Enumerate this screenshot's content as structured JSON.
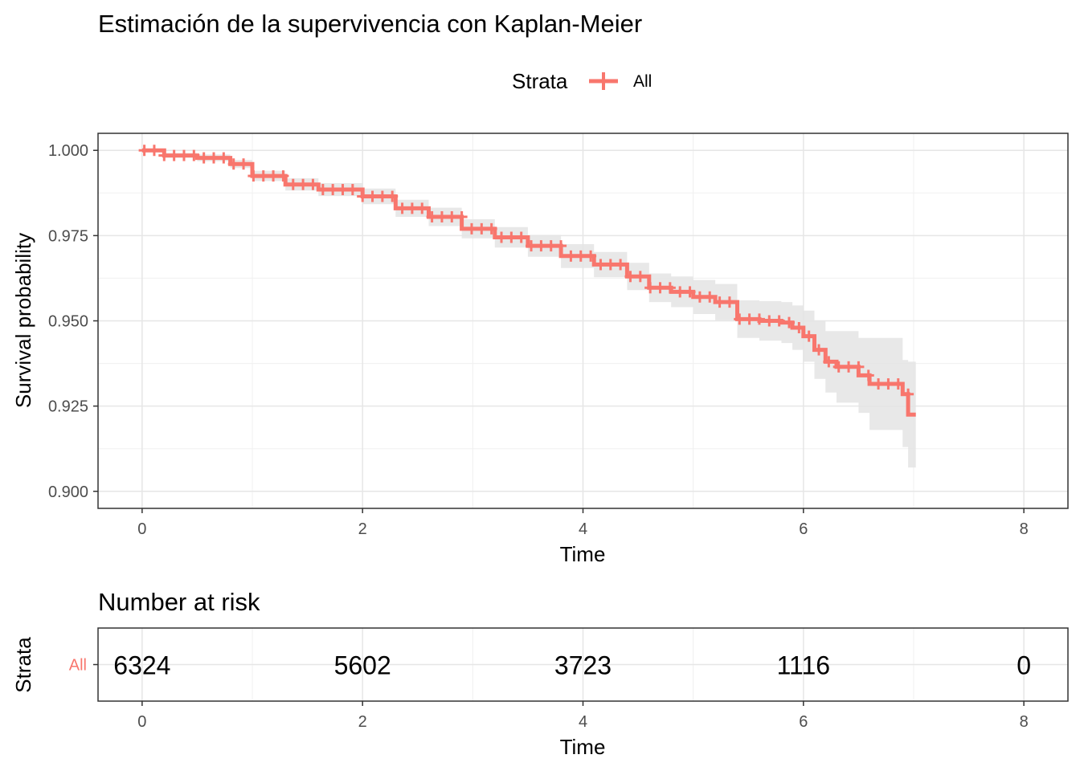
{
  "chart_data": [
    {
      "type": "line",
      "subtype": "kaplan-meier-survival",
      "title": "Estimación de la supervivencia con Kaplan-Meier",
      "legend": {
        "title": "Strata",
        "entries": [
          "All"
        ],
        "position": "top"
      },
      "xlabel": "Time",
      "ylabel": "Survival probability",
      "xlim": [
        -0.4,
        8.4
      ],
      "ylim": [
        0.895,
        1.005
      ],
      "xticks": [
        0,
        2,
        4,
        6,
        8
      ],
      "xtick_labels": [
        "0",
        "2",
        "4",
        "6",
        "8"
      ],
      "yticks": [
        0.9,
        0.925,
        0.95,
        0.975,
        1.0
      ],
      "ytick_labels": [
        "0.900",
        "0.925",
        "0.950",
        "0.975",
        "1.000"
      ],
      "grid": true,
      "series": [
        {
          "name": "All",
          "color": "#F8766D",
          "x": [
            0,
            0.2,
            0.5,
            0.8,
            1.0,
            1.3,
            1.6,
            2.0,
            2.3,
            2.6,
            2.9,
            3.2,
            3.5,
            3.8,
            4.1,
            4.4,
            4.6,
            4.8,
            5.0,
            5.2,
            5.4,
            5.6,
            5.8,
            5.9,
            6.0,
            6.1,
            6.2,
            6.3,
            6.5,
            6.6,
            6.9,
            6.95,
            7.02
          ],
          "y": [
            1.0,
            0.9985,
            0.9978,
            0.996,
            0.9925,
            0.99,
            0.9885,
            0.9865,
            0.983,
            0.9805,
            0.977,
            0.9745,
            0.972,
            0.969,
            0.9665,
            0.963,
            0.9597,
            0.9585,
            0.957,
            0.9555,
            0.9505,
            0.95,
            0.9495,
            0.948,
            0.9455,
            0.9415,
            0.938,
            0.9365,
            0.934,
            0.9315,
            0.9285,
            0.9225,
            0.9225
          ],
          "ci_lower": [
            1.0,
            0.9978,
            0.9968,
            0.9948,
            0.991,
            0.9882,
            0.9866,
            0.9842,
            0.9805,
            0.9778,
            0.9742,
            0.9715,
            0.9688,
            0.9655,
            0.9628,
            0.959,
            0.9555,
            0.954,
            0.952,
            0.9502,
            0.945,
            0.9442,
            0.9435,
            0.9415,
            0.938,
            0.933,
            0.929,
            0.926,
            0.923,
            0.918,
            0.913,
            0.907,
            0.907
          ],
          "ci_upper": [
            1.0,
            0.9992,
            0.9988,
            0.9972,
            0.994,
            0.9918,
            0.9904,
            0.9888,
            0.9855,
            0.9832,
            0.9798,
            0.9775,
            0.9752,
            0.9725,
            0.9702,
            0.967,
            0.9639,
            0.963,
            0.962,
            0.9608,
            0.956,
            0.9558,
            0.9555,
            0.9545,
            0.953,
            0.95,
            0.947,
            0.947,
            0.945,
            0.945,
            0.9385,
            0.938,
            0.938
          ]
        }
      ]
    },
    {
      "type": "table",
      "title": "Number at risk",
      "xlabel": "Time",
      "ylabel": "Strata",
      "xlim": [
        -0.4,
        8.4
      ],
      "xticks": [
        0,
        2,
        4,
        6,
        8
      ],
      "xtick_labels": [
        "0",
        "2",
        "4",
        "6",
        "8"
      ],
      "rows": [
        {
          "strata": "All",
          "color": "#F8766D",
          "times": [
            0,
            2,
            4,
            6,
            8
          ],
          "values": [
            "6324",
            "5602",
            "3723",
            "1116",
            "0"
          ]
        }
      ]
    }
  ]
}
